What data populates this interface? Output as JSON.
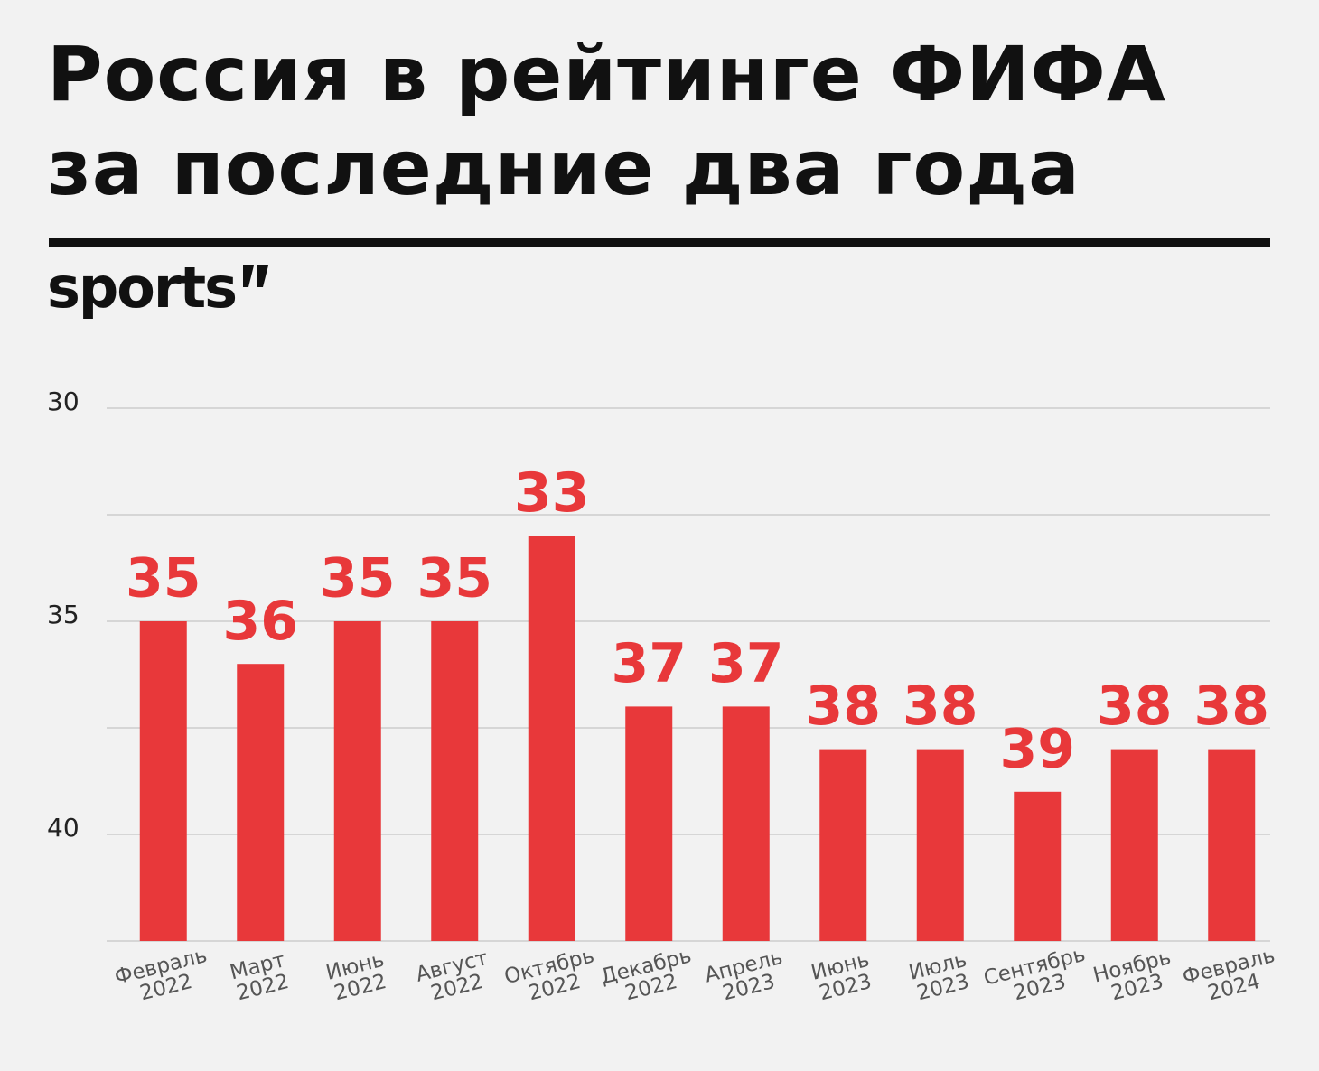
{
  "chart_data": {
    "type": "bar",
    "title": "Россия в рейтинге ФИФА\nза последние два года",
    "brand": "sports",
    "categories": [
      "Февраль\n2022",
      "Март\n2022",
      "Июнь\n2022",
      "Август\n2022",
      "Октябрь\n2022",
      "Декабрь\n2022",
      "Апрель\n2023",
      "Июнь\n2023",
      "Июль\n2023",
      "Сентябрь\n2023",
      "Ноябрь\n2023",
      "Февраль\n2024"
    ],
    "values": [
      35,
      36,
      35,
      35,
      33,
      37,
      37,
      38,
      38,
      39,
      38,
      38
    ],
    "color": "#e8383a",
    "ylim": [
      42.5,
      30
    ],
    "yticks": [
      30,
      35,
      40
    ],
    "minor_grid": [
      32.5,
      37.5,
      42.5
    ],
    "grid": true
  }
}
